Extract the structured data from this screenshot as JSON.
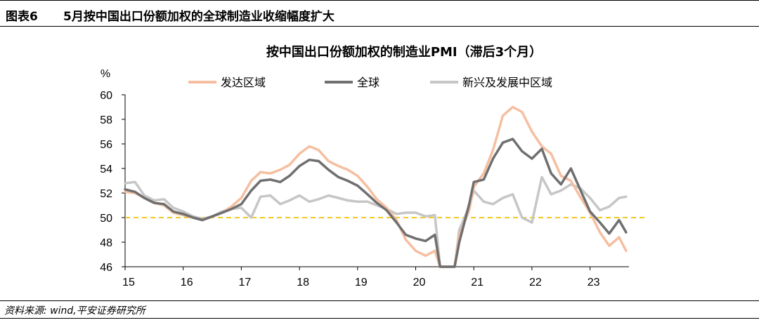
{
  "header": {
    "figure_number": "图表6",
    "figure_title": "5月按中国出口份额加权的全球制造业收缩幅度扩大"
  },
  "footer": {
    "source": "资料来源: wind,平安证券研究所"
  },
  "colors": {
    "developed": "#f5bfa0",
    "global": "#6f6f6f",
    "emerging": "#c6c6c6",
    "reference": "#f2c81e"
  },
  "chart_data": {
    "type": "line",
    "title": "按中国出口份额加权的制造业PMI（滞后3个月）",
    "ylabel": "%",
    "ylim": [
      46,
      60
    ],
    "yticks": [
      46,
      48,
      50,
      52,
      54,
      56,
      58,
      60
    ],
    "xlim": [
      2015.0,
      2023.67
    ],
    "xticks": [
      {
        "value": 2015.0,
        "label": "15"
      },
      {
        "value": 2016.0,
        "label": "16"
      },
      {
        "value": 2017.0,
        "label": "17"
      },
      {
        "value": 2018.0,
        "label": "18"
      },
      {
        "value": 2019.0,
        "label": "19"
      },
      {
        "value": 2020.0,
        "label": "20"
      },
      {
        "value": 2021.0,
        "label": "21"
      },
      {
        "value": 2022.0,
        "label": "22"
      },
      {
        "value": 2023.0,
        "label": "23"
      }
    ],
    "reference_line": 50,
    "legend_position": "top",
    "series": [
      {
        "name": "发达区域",
        "color_key": "developed",
        "x": [
          2015.0,
          2015.17,
          2015.33,
          2015.5,
          2015.67,
          2015.83,
          2016.0,
          2016.17,
          2016.33,
          2016.5,
          2016.67,
          2016.83,
          2017.0,
          2017.17,
          2017.33,
          2017.5,
          2017.67,
          2017.83,
          2018.0,
          2018.17,
          2018.33,
          2018.5,
          2018.67,
          2018.83,
          2019.0,
          2019.17,
          2019.33,
          2019.5,
          2019.67,
          2019.83,
          2020.0,
          2020.17,
          2020.33,
          2020.42,
          2020.67,
          2020.75,
          2020.92,
          2021.0,
          2021.17,
          2021.33,
          2021.5,
          2021.67,
          2021.83,
          2022.0,
          2022.17,
          2022.33,
          2022.5,
          2022.67,
          2022.83,
          2023.0,
          2023.17,
          2023.33,
          2023.5,
          2023.62
        ],
        "values": [
          52.1,
          52.0,
          51.6,
          51.2,
          51.0,
          50.4,
          50.2,
          50.0,
          49.8,
          50.1,
          50.4,
          50.9,
          51.6,
          53.0,
          53.7,
          53.6,
          53.9,
          54.3,
          55.2,
          55.8,
          55.5,
          54.6,
          54.2,
          53.9,
          53.4,
          52.5,
          51.5,
          50.8,
          49.8,
          48.2,
          47.3,
          46.9,
          47.3,
          46.0,
          46.0,
          48.5,
          50.6,
          52.5,
          53.6,
          55.5,
          58.3,
          59.0,
          58.6,
          57.0,
          55.8,
          55.2,
          53.4,
          53.0,
          51.7,
          50.4,
          48.8,
          47.7,
          48.4,
          47.3
        ]
      },
      {
        "name": "全球",
        "color_key": "global",
        "x": [
          2015.0,
          2015.17,
          2015.33,
          2015.5,
          2015.67,
          2015.83,
          2016.0,
          2016.17,
          2016.33,
          2016.5,
          2016.67,
          2016.83,
          2017.0,
          2017.17,
          2017.33,
          2017.5,
          2017.67,
          2017.83,
          2018.0,
          2018.17,
          2018.33,
          2018.5,
          2018.67,
          2018.83,
          2019.0,
          2019.17,
          2019.33,
          2019.5,
          2019.67,
          2019.83,
          2020.0,
          2020.17,
          2020.33,
          2020.42,
          2020.67,
          2020.75,
          2020.92,
          2021.0,
          2021.17,
          2021.33,
          2021.5,
          2021.67,
          2021.83,
          2022.0,
          2022.17,
          2022.33,
          2022.5,
          2022.67,
          2022.83,
          2023.0,
          2023.17,
          2023.33,
          2023.5,
          2023.62
        ],
        "values": [
          52.3,
          52.1,
          51.6,
          51.2,
          51.1,
          50.5,
          50.3,
          50.0,
          49.8,
          50.1,
          50.4,
          50.7,
          51.1,
          52.2,
          53.0,
          53.1,
          52.9,
          53.4,
          54.2,
          54.7,
          54.6,
          53.9,
          53.3,
          53.0,
          52.6,
          51.9,
          51.2,
          50.6,
          49.6,
          48.6,
          48.3,
          48.1,
          48.6,
          46.0,
          46.0,
          48.0,
          51.1,
          52.9,
          53.1,
          54.8,
          56.1,
          56.4,
          55.4,
          54.8,
          55.6,
          53.6,
          52.7,
          54.0,
          52.3,
          50.5,
          49.6,
          48.7,
          49.8,
          48.8
        ]
      },
      {
        "name": "新兴及发展中区域",
        "color_key": "emerging",
        "x": [
          2015.0,
          2015.17,
          2015.33,
          2015.5,
          2015.67,
          2015.83,
          2016.0,
          2016.17,
          2016.33,
          2016.5,
          2016.67,
          2016.83,
          2017.0,
          2017.17,
          2017.33,
          2017.5,
          2017.67,
          2017.83,
          2018.0,
          2018.17,
          2018.33,
          2018.5,
          2018.67,
          2018.83,
          2019.0,
          2019.17,
          2019.33,
          2019.5,
          2019.67,
          2019.83,
          2020.0,
          2020.17,
          2020.33,
          2020.42,
          2020.67,
          2020.75,
          2020.92,
          2021.0,
          2021.17,
          2021.33,
          2021.5,
          2021.67,
          2021.83,
          2022.0,
          2022.17,
          2022.33,
          2022.5,
          2022.67,
          2022.83,
          2023.0,
          2023.17,
          2023.33,
          2023.5,
          2023.62
        ],
        "values": [
          52.8,
          52.9,
          51.8,
          51.4,
          51.5,
          50.8,
          50.5,
          50.1,
          49.9,
          50.1,
          50.5,
          50.7,
          50.8,
          50.0,
          51.7,
          51.8,
          51.1,
          51.4,
          51.8,
          51.3,
          51.5,
          51.8,
          51.6,
          51.4,
          51.3,
          51.3,
          51.0,
          50.7,
          50.3,
          50.4,
          50.4,
          50.1,
          50.2,
          46.0,
          46.0,
          49.0,
          50.9,
          52.2,
          51.3,
          51.1,
          51.6,
          51.9,
          50.0,
          49.6,
          53.3,
          51.9,
          52.2,
          52.7,
          52.4,
          51.6,
          50.6,
          50.9,
          51.6,
          51.7
        ]
      }
    ]
  }
}
